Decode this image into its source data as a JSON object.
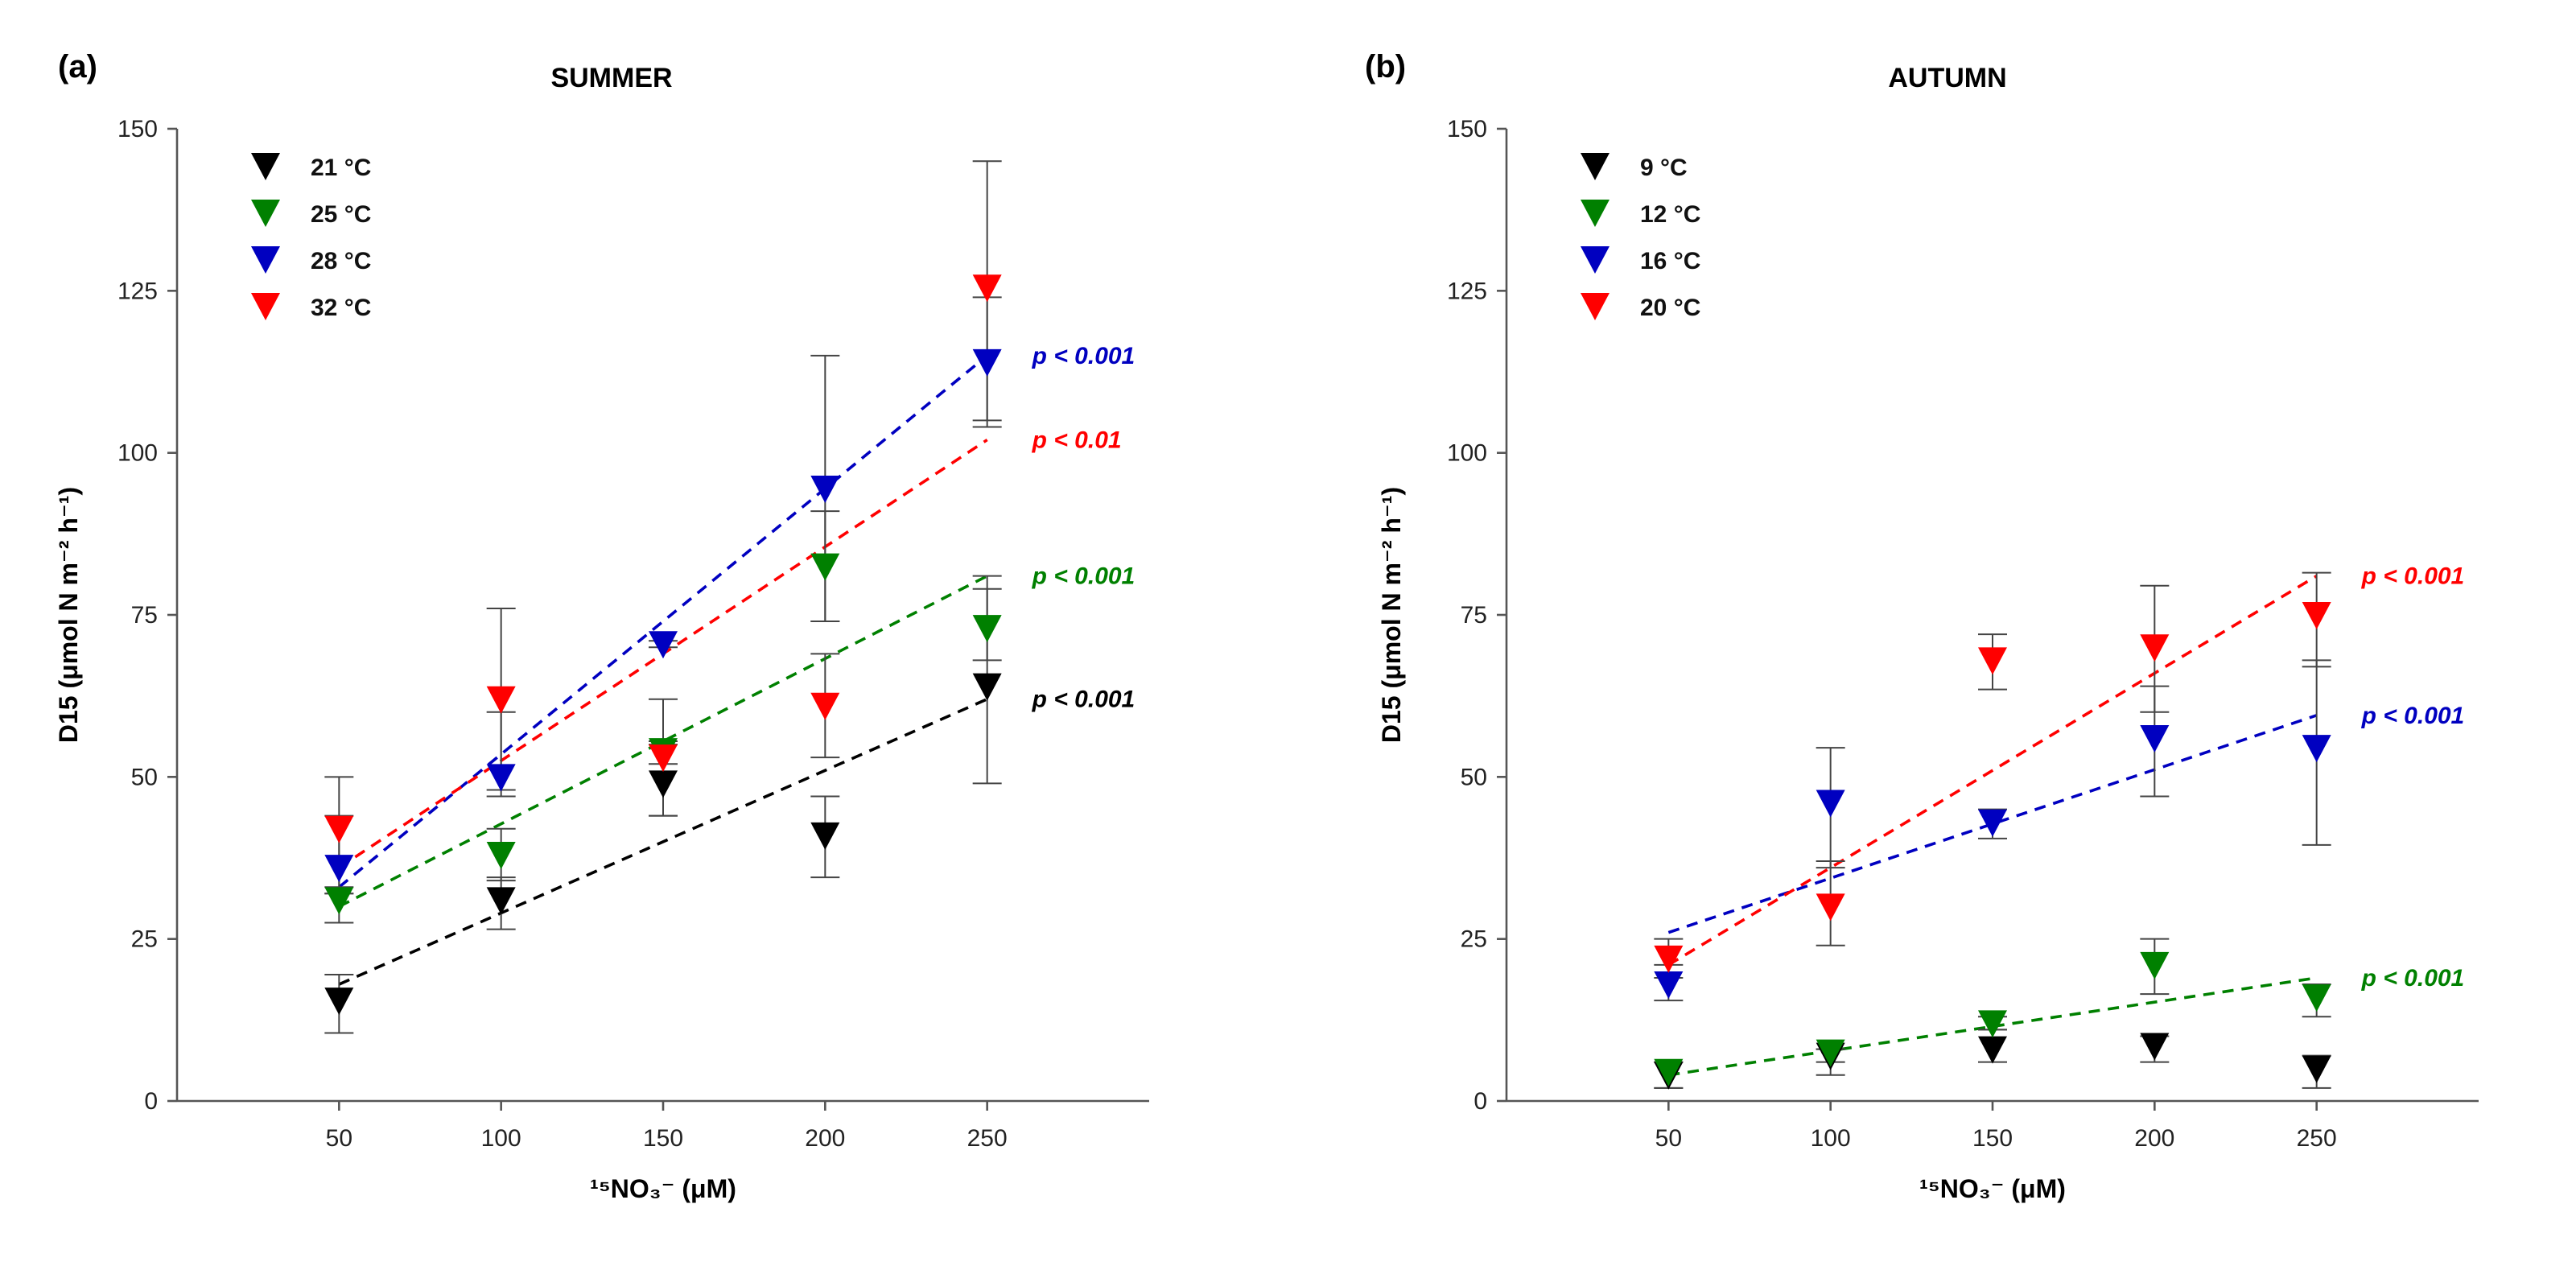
{
  "chart_data": [
    {
      "type": "scatter",
      "panel_label": "(a)",
      "title": "SUMMER",
      "xlabel": "¹⁵NO₃⁻ (μM)",
      "ylabel": "D15 (μmol N m⁻² h⁻¹)",
      "xlim": [
        0,
        300
      ],
      "ylim": [
        0,
        150
      ],
      "xticks": [
        50,
        100,
        150,
        200,
        250
      ],
      "yticks": [
        0,
        25,
        50,
        75,
        100,
        125,
        150
      ],
      "grid": false,
      "legend_position": "top-left",
      "x": [
        50,
        100,
        150,
        200,
        250
      ],
      "series": [
        {
          "name": "21 °C",
          "color": "#000000",
          "values": [
            15.5,
            31,
            49,
            41,
            64
          ],
          "err_low": [
            10.5,
            26.5,
            44,
            34.5,
            49
          ],
          "err_high": [
            19.5,
            34.5,
            55,
            47,
            79
          ],
          "fit": [
            18,
            62
          ],
          "p_label": "p < 0.001"
        },
        {
          "name": "25 °C",
          "color": "#008000",
          "values": [
            31,
            38,
            54,
            82.5,
            73
          ],
          "err_low": [
            27.5,
            34,
            52,
            74,
            68
          ],
          "err_high": [
            32,
            42,
            55.5,
            91,
            81
          ],
          "fit": [
            30,
            81
          ],
          "p_label": "p < 0.001"
        },
        {
          "name": "28 °C",
          "color": "#0000c0",
          "values": [
            36,
            50,
            70.5,
            94.5,
            114
          ],
          "err_low": [
            32,
            47,
            70,
            74,
            104
          ],
          "err_high": [
            44,
            60,
            71,
            115,
            124
          ],
          "fit": [
            33,
            115
          ],
          "p_label": "p < 0.001"
        },
        {
          "name": "32 °C",
          "color": "#ff0000",
          "values": [
            42,
            62,
            53,
            61,
            125.5
          ],
          "err_low": [
            33,
            48,
            44,
            53,
            105
          ],
          "err_high": [
            50,
            76,
            62,
            69,
            145
          ],
          "fit": [
            36,
            102
          ],
          "p_label": "p < 0.01"
        }
      ]
    },
    {
      "type": "scatter",
      "panel_label": "(b)",
      "title": "AUTUMN",
      "xlabel": "¹⁵NO₃⁻ (μM)",
      "ylabel": "D15 (μmol N m⁻² h⁻¹)",
      "xlim": [
        0,
        300
      ],
      "ylim": [
        0,
        150
      ],
      "xticks": [
        50,
        100,
        150,
        200,
        250
      ],
      "yticks": [
        0,
        25,
        50,
        75,
        100,
        125,
        150
      ],
      "grid": false,
      "legend_position": "top-left",
      "x": [
        50,
        100,
        150,
        200,
        250
      ],
      "series": [
        {
          "name": "9 °C",
          "color": "#000000",
          "values": [
            4,
            7,
            8,
            8.5,
            5
          ],
          "err_low": [
            2,
            4,
            6,
            6,
            2
          ],
          "err_high": [
            6,
            8,
            11,
            10,
            7
          ],
          "fit": null,
          "p_label": null
        },
        {
          "name": "12 °C",
          "color": "#008000",
          "values": [
            4.5,
            7.5,
            12,
            21,
            16
          ],
          "err_low": [
            2,
            6,
            11,
            16.5,
            13
          ],
          "err_high": [
            6,
            8,
            13,
            25,
            18
          ],
          "fit": [
            4,
            19
          ],
          "p_label": "p < 0.001"
        },
        {
          "name": "16 °C",
          "color": "#0000c0",
          "values": [
            18,
            46,
            43,
            56,
            54.5
          ],
          "err_low": [
            15.5,
            36,
            40.5,
            47,
            39.5
          ],
          "err_high": [
            21,
            54.5,
            45,
            64,
            68
          ],
          "fit": [
            26,
            59.5
          ],
          "p_label": "p < 0.001"
        },
        {
          "name": "20 °C",
          "color": "#ff0000",
          "values": [
            22,
            30,
            68,
            70,
            75
          ],
          "err_low": [
            19,
            24,
            63.5,
            60,
            67
          ],
          "err_high": [
            25,
            37,
            72,
            79.5,
            81.5
          ],
          "fit": [
            21,
            81
          ],
          "p_label": "p < 0.001"
        }
      ]
    }
  ]
}
